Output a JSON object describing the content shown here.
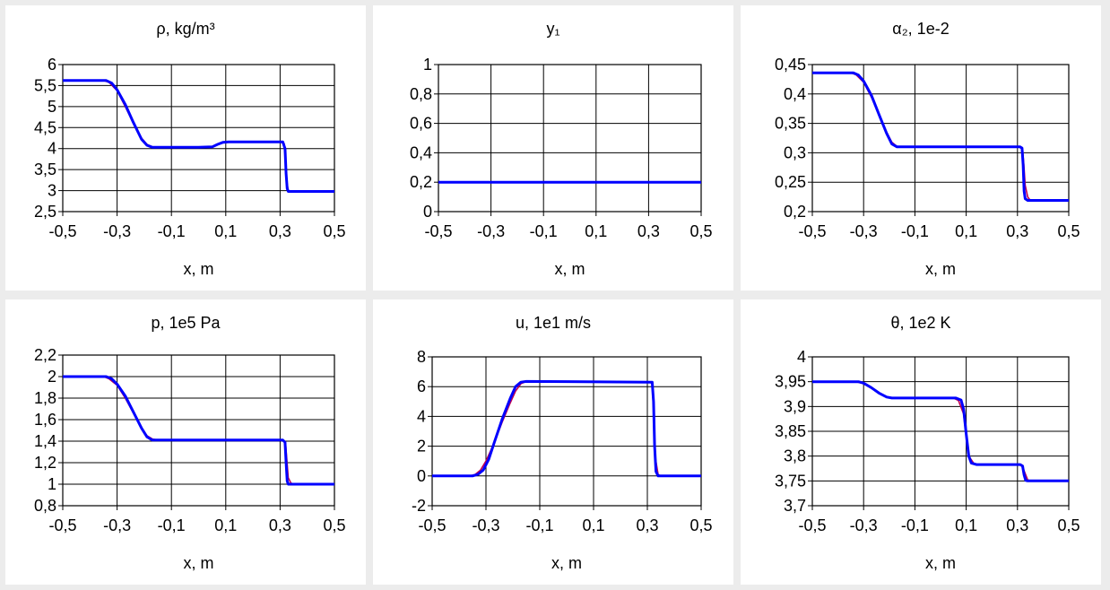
{
  "chart_data": [
    {
      "type": "line",
      "title": "ρ,  kg/m³",
      "xlabel": "x, m",
      "xlim": [
        -0.5,
        0.5
      ],
      "ylim": [
        2.5,
        6
      ],
      "xticks": [
        -0.5,
        -0.3,
        -0.1,
        0.1,
        0.3,
        0.5
      ],
      "xtick_labels": [
        "-0,5",
        "-0,3",
        "-0,1",
        "0,1",
        "0,3",
        "0,5"
      ],
      "yticks": [
        2.5,
        3,
        3.5,
        4,
        4.5,
        5,
        5.5,
        6
      ],
      "ytick_labels": [
        "2,5",
        "3",
        "3,5",
        "4",
        "4,5",
        "5",
        "5,5",
        "6"
      ],
      "grid": true,
      "series": [
        {
          "color": "#c00050",
          "x": [
            -0.5,
            -0.35,
            -0.33,
            -0.3,
            -0.27,
            -0.24,
            -0.21,
            -0.19,
            -0.17,
            -0.15,
            0.0,
            0.05,
            0.07,
            0.09,
            0.11,
            0.3,
            0.315,
            0.32,
            0.325,
            0.33,
            0.34,
            0.5
          ],
          "y": [
            5.62,
            5.62,
            5.58,
            5.38,
            5.0,
            4.6,
            4.25,
            4.1,
            4.04,
            4.03,
            4.03,
            4.04,
            4.1,
            4.15,
            4.16,
            4.16,
            4.12,
            3.7,
            3.2,
            3.0,
            2.98,
            2.98
          ]
        },
        {
          "color": "#0000ff",
          "x": [
            -0.5,
            -0.34,
            -0.32,
            -0.3,
            -0.27,
            -0.24,
            -0.21,
            -0.19,
            -0.17,
            -0.15,
            0.0,
            0.05,
            0.07,
            0.09,
            0.11,
            0.31,
            0.318,
            0.322,
            0.326,
            0.33,
            0.34,
            0.5
          ],
          "y": [
            5.62,
            5.62,
            5.56,
            5.4,
            5.05,
            4.62,
            4.22,
            4.08,
            4.03,
            4.03,
            4.03,
            4.04,
            4.1,
            4.15,
            4.16,
            4.16,
            4.0,
            3.4,
            3.05,
            2.98,
            2.98,
            2.98
          ]
        }
      ]
    },
    {
      "type": "line",
      "title": "y₁",
      "xlabel": "x, m",
      "xlim": [
        -0.5,
        0.5
      ],
      "ylim": [
        0,
        1
      ],
      "xticks": [
        -0.5,
        -0.3,
        -0.1,
        0.1,
        0.3,
        0.5
      ],
      "xtick_labels": [
        "-0,5",
        "-0,3",
        "-0,1",
        "0,1",
        "0,3",
        "0,5"
      ],
      "yticks": [
        0,
        0.2,
        0.4,
        0.6,
        0.8,
        1
      ],
      "ytick_labels": [
        "0",
        "0,2",
        "0,4",
        "0,6",
        "0,8",
        "1"
      ],
      "grid": true,
      "series": [
        {
          "color": "#c00050",
          "x": [
            -0.5,
            0.5
          ],
          "y": [
            0.2,
            0.2
          ]
        },
        {
          "color": "#0000ff",
          "x": [
            -0.5,
            0.5
          ],
          "y": [
            0.2,
            0.2
          ]
        }
      ]
    },
    {
      "type": "line",
      "title": "α₂,  1e-2",
      "xlabel": "x, m",
      "xlim": [
        -0.5,
        0.5
      ],
      "ylim": [
        0.2,
        0.45
      ],
      "xticks": [
        -0.5,
        -0.3,
        -0.1,
        0.1,
        0.3,
        0.5
      ],
      "xtick_labels": [
        "-0,5",
        "-0,3",
        "-0,1",
        "0,1",
        "0,3",
        "0,5"
      ],
      "yticks": [
        0.2,
        0.25,
        0.3,
        0.35,
        0.4,
        0.45
      ],
      "ytick_labels": [
        "0,2",
        "0,25",
        "0,3",
        "0,35",
        "0,4",
        "0,45"
      ],
      "grid": true,
      "series": [
        {
          "color": "#c00050",
          "x": [
            -0.5,
            -0.35,
            -0.33,
            -0.3,
            -0.27,
            -0.24,
            -0.21,
            -0.19,
            -0.17,
            -0.15,
            0.31,
            0.32,
            0.325,
            0.33,
            0.34,
            0.35,
            0.5
          ],
          "y": [
            0.436,
            0.436,
            0.433,
            0.42,
            0.395,
            0.365,
            0.335,
            0.318,
            0.311,
            0.31,
            0.31,
            0.305,
            0.28,
            0.245,
            0.225,
            0.219,
            0.219
          ]
        },
        {
          "color": "#0000ff",
          "x": [
            -0.5,
            -0.34,
            -0.32,
            -0.3,
            -0.27,
            -0.24,
            -0.21,
            -0.19,
            -0.17,
            -0.15,
            0.31,
            0.318,
            0.322,
            0.326,
            0.33,
            0.34,
            0.5
          ],
          "y": [
            0.436,
            0.436,
            0.432,
            0.422,
            0.398,
            0.365,
            0.333,
            0.315,
            0.31,
            0.31,
            0.31,
            0.308,
            0.28,
            0.235,
            0.222,
            0.219,
            0.219
          ]
        }
      ]
    },
    {
      "type": "line",
      "title": "p,  1e5 Pa",
      "xlabel": "x, m",
      "xlim": [
        -0.5,
        0.5
      ],
      "ylim": [
        0.8,
        2.2
      ],
      "xticks": [
        -0.5,
        -0.3,
        -0.1,
        0.1,
        0.3,
        0.5
      ],
      "xtick_labels": [
        "-0,5",
        "-0,3",
        "-0,1",
        "0,1",
        "0,3",
        "0,5"
      ],
      "yticks": [
        0.8,
        1,
        1.2,
        1.4,
        1.6,
        1.8,
        2,
        2.2
      ],
      "ytick_labels": [
        "0,8",
        "1",
        "1,2",
        "1,4",
        "1,6",
        "1,8",
        "2",
        "2,2"
      ],
      "grid": true,
      "series": [
        {
          "color": "#c00050",
          "x": [
            -0.5,
            -0.35,
            -0.33,
            -0.3,
            -0.27,
            -0.24,
            -0.21,
            -0.19,
            -0.17,
            -0.15,
            0.31,
            0.32,
            0.325,
            0.33,
            0.34,
            0.35,
            0.5
          ],
          "y": [
            2.0,
            2.0,
            1.98,
            1.92,
            1.8,
            1.66,
            1.52,
            1.45,
            1.42,
            1.41,
            1.41,
            1.38,
            1.22,
            1.06,
            1.01,
            1.0,
            1.0
          ]
        },
        {
          "color": "#0000ff",
          "x": [
            -0.5,
            -0.34,
            -0.32,
            -0.3,
            -0.27,
            -0.24,
            -0.21,
            -0.19,
            -0.17,
            -0.15,
            0.31,
            0.318,
            0.322,
            0.326,
            0.33,
            0.34,
            0.5
          ],
          "y": [
            2.0,
            2.0,
            1.98,
            1.93,
            1.82,
            1.67,
            1.52,
            1.44,
            1.41,
            1.41,
            1.41,
            1.39,
            1.2,
            1.03,
            1.0,
            1.0,
            1.0
          ]
        }
      ]
    },
    {
      "type": "line",
      "title": "u,  1e1 m/s",
      "xlabel": "x, m",
      "xlim": [
        -0.5,
        0.5
      ],
      "ylim": [
        -2,
        8
      ],
      "xticks": [
        -0.5,
        -0.3,
        -0.1,
        0.1,
        0.3,
        0.5
      ],
      "xtick_labels": [
        "-0,5",
        "-0,3",
        "-0,1",
        "0,1",
        "0,3",
        "0,5"
      ],
      "yticks": [
        -2,
        0,
        2,
        4,
        6,
        8
      ],
      "ytick_labels": [
        "-2",
        "0",
        "2",
        "4",
        "6",
        "8"
      ],
      "grid": true,
      "series": [
        {
          "color": "#c00050",
          "x": [
            -0.5,
            -0.36,
            -0.34,
            -0.32,
            -0.3,
            -0.27,
            -0.24,
            -0.21,
            -0.19,
            -0.17,
            -0.15,
            0.31,
            0.318,
            0.324,
            0.33,
            0.34,
            0.35,
            0.5
          ],
          "y": [
            0,
            0,
            0.1,
            0.4,
            1.0,
            2.2,
            3.6,
            4.9,
            5.7,
            6.2,
            6.35,
            6.3,
            6.2,
            4.0,
            1.2,
            0.1,
            0,
            0
          ]
        },
        {
          "color": "#0000ff",
          "x": [
            -0.5,
            -0.35,
            -0.33,
            -0.31,
            -0.29,
            -0.27,
            -0.24,
            -0.21,
            -0.19,
            -0.17,
            -0.15,
            0.31,
            0.318,
            0.323,
            0.327,
            0.332,
            0.34,
            0.5
          ],
          "y": [
            0,
            0,
            0.1,
            0.4,
            1.1,
            2.2,
            3.8,
            5.2,
            6.0,
            6.3,
            6.35,
            6.3,
            6.3,
            5.0,
            2.0,
            0.3,
            0,
            0
          ]
        }
      ]
    },
    {
      "type": "line",
      "title": "θ,  1e2 K",
      "xlabel": "x, m",
      "xlim": [
        -0.5,
        0.5
      ],
      "ylim": [
        3.7,
        4
      ],
      "xticks": [
        -0.5,
        -0.3,
        -0.1,
        0.1,
        0.3,
        0.5
      ],
      "xtick_labels": [
        "-0,5",
        "-0,3",
        "-0,1",
        "0,1",
        "0,3",
        "0,5"
      ],
      "yticks": [
        3.7,
        3.75,
        3.8,
        3.85,
        3.9,
        3.95,
        4
      ],
      "ytick_labels": [
        "3,7",
        "3,75",
        "3,8",
        "3,85",
        "3,9",
        "3,95",
        "4"
      ],
      "grid": true,
      "series": [
        {
          "color": "#c00050",
          "x": [
            -0.5,
            -0.33,
            -0.3,
            -0.27,
            -0.24,
            -0.21,
            -0.19,
            -0.17,
            0.05,
            0.07,
            0.09,
            0.1,
            0.11,
            0.13,
            0.15,
            0.31,
            0.32,
            0.33,
            0.34,
            0.35,
            0.5
          ],
          "y": [
            3.95,
            3.95,
            3.946,
            3.938,
            3.928,
            3.92,
            3.917,
            3.917,
            3.917,
            3.912,
            3.885,
            3.84,
            3.8,
            3.785,
            3.783,
            3.783,
            3.778,
            3.765,
            3.752,
            3.75,
            3.75
          ]
        },
        {
          "color": "#0000ff",
          "x": [
            -0.5,
            -0.32,
            -0.3,
            -0.27,
            -0.24,
            -0.21,
            -0.19,
            -0.17,
            0.06,
            0.08,
            0.09,
            0.1,
            0.11,
            0.12,
            0.14,
            0.31,
            0.32,
            0.326,
            0.332,
            0.34,
            0.5
          ],
          "y": [
            3.95,
            3.95,
            3.947,
            3.938,
            3.927,
            3.919,
            3.917,
            3.917,
            3.917,
            3.913,
            3.895,
            3.845,
            3.8,
            3.786,
            3.783,
            3.783,
            3.78,
            3.762,
            3.751,
            3.75,
            3.75
          ]
        }
      ]
    }
  ]
}
